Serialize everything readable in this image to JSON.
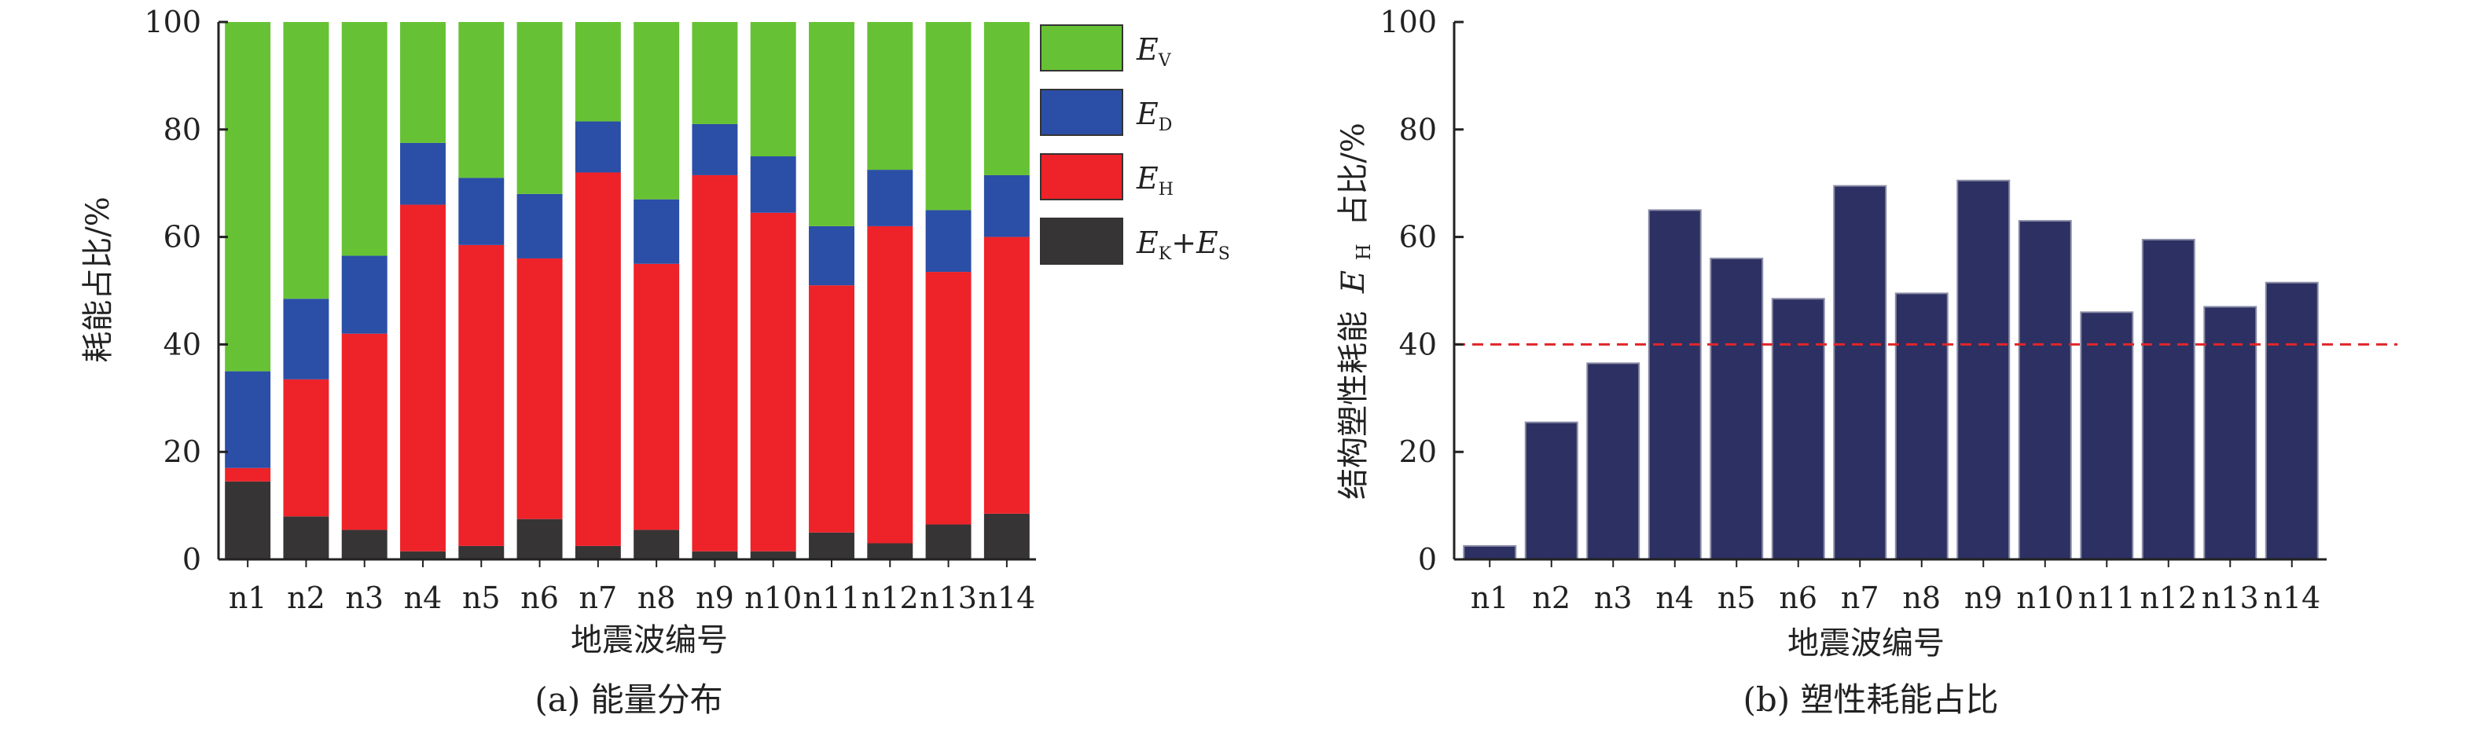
{
  "colors": {
    "ev": "#66c234",
    "ed": "#2b4ea6",
    "eh": "#ee2229",
    "eks": "#373435",
    "bar_b": "#2c3062",
    "threshold": "#e0262a",
    "axis": "#222222"
  },
  "chart_data": [
    {
      "type": "bar",
      "stacked": true,
      "caption": "(a) 能量分布",
      "xlabel": "地震波编号",
      "ylabel": "耗能占比/%",
      "ylim": [
        0,
        100
      ],
      "yticks": [
        "0",
        "20",
        "40",
        "60",
        "80",
        "100"
      ],
      "categories": [
        "n1",
        "n2",
        "n3",
        "n4",
        "n5",
        "n6",
        "n7",
        "n8",
        "n9",
        "n10",
        "n11",
        "n12",
        "n13",
        "n14"
      ],
      "legend_position": "right",
      "series": [
        {
          "key": "eks",
          "legend_main": "E",
          "legend_sub": "K",
          "legend_plus": "+E",
          "legend_sub2": "S",
          "values": [
            14.5,
            8,
            5.5,
            1.5,
            2.5,
            7.5,
            2.5,
            5.5,
            1.5,
            1.5,
            5,
            3,
            6.5,
            8.5
          ]
        },
        {
          "key": "eh",
          "legend_main": "E",
          "legend_sub": "H",
          "values": [
            2.5,
            25.5,
            36.5,
            64.5,
            56,
            48.5,
            69.5,
            49.5,
            70,
            63,
            46,
            59,
            47,
            51.5
          ]
        },
        {
          "key": "ed",
          "legend_main": "E",
          "legend_sub": "D",
          "values": [
            18,
            15,
            14.5,
            11.5,
            12.5,
            12,
            9.5,
            12,
            9.5,
            10.5,
            11,
            10.5,
            11.5,
            11.5
          ]
        },
        {
          "key": "ev",
          "legend_main": "E",
          "legend_sub": "V",
          "values": [
            65,
            51.5,
            43.5,
            22.5,
            29,
            32,
            18.5,
            33,
            19,
            25,
            38,
            27.5,
            35,
            28.5
          ]
        }
      ]
    },
    {
      "type": "bar",
      "caption": "(b) 塑性耗能占比",
      "xlabel": "地震波编号",
      "ylabel_prefix": "结构塑性耗能",
      "ylabel_main": "E",
      "ylabel_sub": "H",
      "ylabel_suffix": "占比/%",
      "ylim": [
        0,
        100
      ],
      "yticks": [
        "0",
        "20",
        "40",
        "60",
        "80",
        "100"
      ],
      "categories": [
        "n1",
        "n2",
        "n3",
        "n4",
        "n5",
        "n6",
        "n7",
        "n8",
        "n9",
        "n10",
        "n11",
        "n12",
        "n13",
        "n14"
      ],
      "values": [
        2.5,
        25.5,
        36.5,
        65,
        56,
        48.5,
        69.5,
        49.5,
        70.5,
        63,
        46,
        59.5,
        47,
        51.5
      ],
      "threshold": 40
    }
  ]
}
